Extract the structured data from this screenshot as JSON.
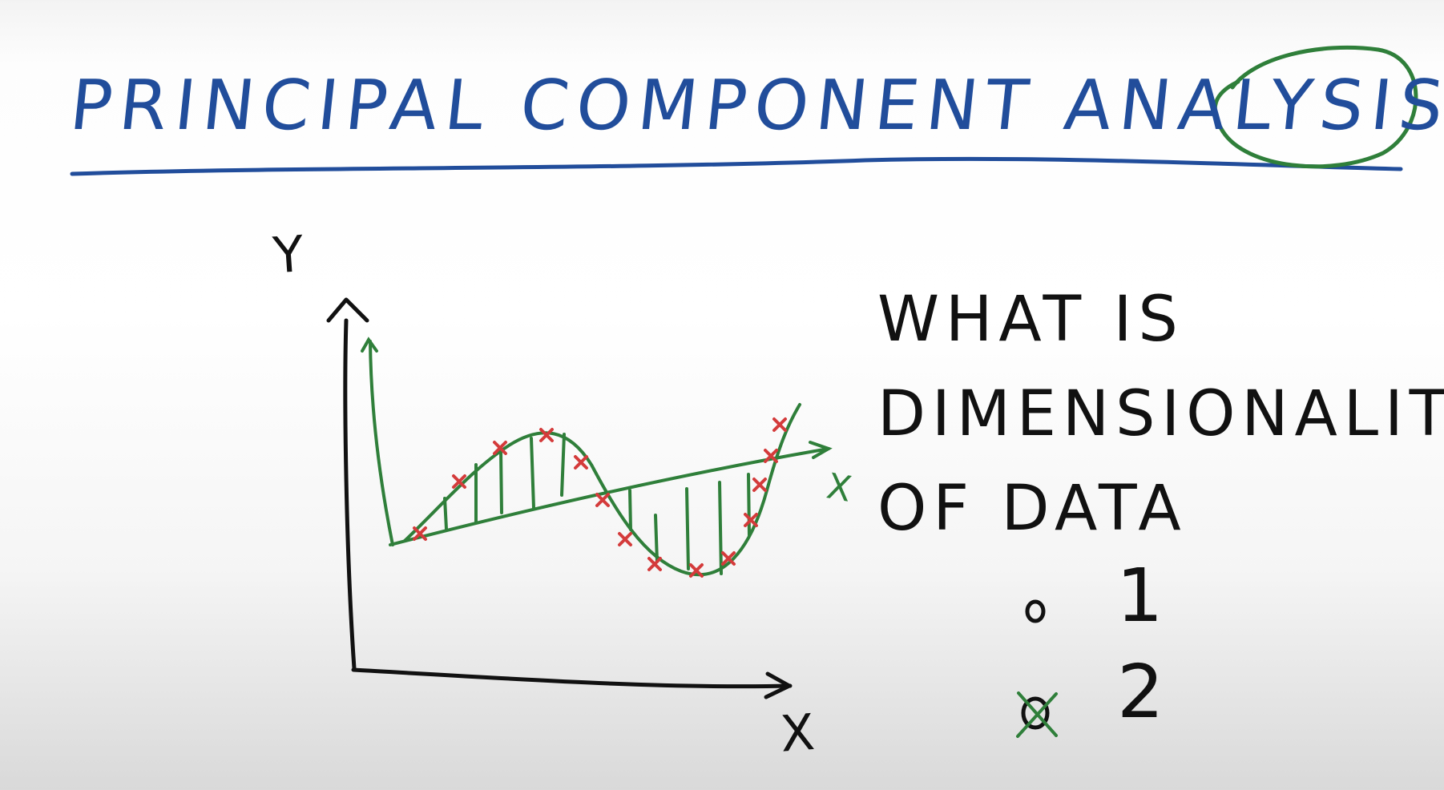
{
  "title": "PRINCIPAL COMPONENT ANALYSIS - PCA",
  "axes": {
    "x_label": "X",
    "y_label": "Y",
    "pc_label": "X"
  },
  "question": {
    "lines": [
      "WHAT IS",
      "DIMENSIONALITY",
      "OF DATA"
    ]
  },
  "options": [
    {
      "bullet": "o",
      "label": "1"
    },
    {
      "bullet": "x",
      "label": "2"
    }
  ],
  "colors": {
    "title_ink": "#214d9b",
    "text_ink": "#111111",
    "curve_ink": "#2f7f3a",
    "point_ink": "#d43b3b"
  }
}
